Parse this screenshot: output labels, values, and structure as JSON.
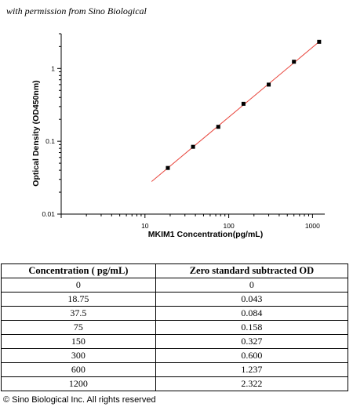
{
  "permission_note": "with permission from Sino Biological",
  "copyright": "© Sino Biological Inc. All rights reserved",
  "chart_data": {
    "type": "scatter",
    "x_scale": "log",
    "y_scale": "log",
    "xlabel": "MKIM1  Concentration(pg/mL)",
    "ylabel": "Optical Density (OD450nm)",
    "xlim": [
      1,
      1400
    ],
    "ylim": [
      0.01,
      3
    ],
    "x_ticks": [
      10,
      100,
      1000
    ],
    "x_tick_labels": [
      "10",
      "100",
      "1000"
    ],
    "y_ticks": [
      0.01,
      0.1,
      1
    ],
    "y_tick_labels": [
      "0.01",
      "0.1",
      "1"
    ],
    "grid": false,
    "marker_color": "#000000",
    "fit_color": "#e8453c",
    "points": [
      {
        "x": 18.75,
        "y": 0.043
      },
      {
        "x": 37.5,
        "y": 0.084
      },
      {
        "x": 75,
        "y": 0.158
      },
      {
        "x": 150,
        "y": 0.327
      },
      {
        "x": 300,
        "y": 0.6
      },
      {
        "x": 600,
        "y": 1.237
      },
      {
        "x": 1200,
        "y": 2.322
      }
    ],
    "fit_line": [
      {
        "x": 12,
        "y": 0.028
      },
      {
        "x": 1250,
        "y": 2.42
      }
    ]
  },
  "table": {
    "headers": [
      "Concentration ( pg/mL)",
      "Zero standard subtracted OD"
    ],
    "rows": [
      [
        "0",
        "0"
      ],
      [
        "18.75",
        "0.043"
      ],
      [
        "37.5",
        "0.084"
      ],
      [
        "75",
        "0.158"
      ],
      [
        "150",
        "0.327"
      ],
      [
        "300",
        "0.600"
      ],
      [
        "600",
        "1.237"
      ],
      [
        "1200",
        "2.322"
      ]
    ]
  }
}
